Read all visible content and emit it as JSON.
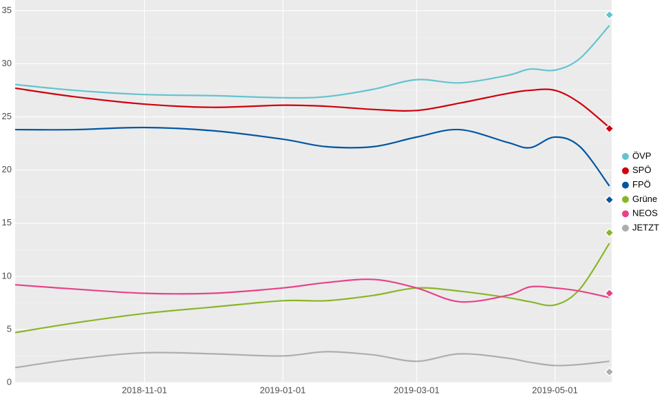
{
  "chart_data": {
    "type": "line",
    "x": [
      "2018-09-05",
      "2018-10-01",
      "2018-11-01",
      "2018-12-01",
      "2019-01-01",
      "2019-01-20",
      "2019-02-10",
      "2019-03-01",
      "2019-03-20",
      "2019-04-10",
      "2019-04-20",
      "2019-05-01",
      "2019-05-12",
      "2019-05-25"
    ],
    "xlim": [
      "2018-09-05",
      "2019-05-26"
    ],
    "xticks": [
      "2018-11-01",
      "2019-01-01",
      "2019-03-01",
      "2019-05-01"
    ],
    "ylim": [
      0,
      36
    ],
    "yticks": [
      0,
      5,
      10,
      15,
      20,
      25,
      30,
      35
    ],
    "grid": true,
    "legend": "right",
    "result_x": "2019-05-25",
    "series": [
      {
        "name": "ÖVP",
        "color": "#63c3d0",
        "values": [
          28.05,
          27.5,
          27.1,
          27.0,
          26.8,
          26.9,
          27.6,
          28.5,
          28.2,
          28.9,
          29.5,
          29.4,
          30.5,
          33.6
        ],
        "result": 34.6
      },
      {
        "name": "SPÖ",
        "color": "#ce000c",
        "values": [
          27.7,
          26.9,
          26.2,
          25.9,
          26.1,
          26.0,
          25.7,
          25.6,
          26.3,
          27.2,
          27.5,
          27.5,
          26.3,
          24.0
        ],
        "result": 23.9
      },
      {
        "name": "FPÖ",
        "color": "#0056a2",
        "values": [
          23.8,
          23.8,
          24.0,
          23.7,
          22.9,
          22.2,
          22.2,
          23.1,
          23.8,
          22.6,
          22.1,
          23.1,
          22.2,
          18.5
        ],
        "result": 17.2
      },
      {
        "name": "Grüne",
        "color": "#88b626",
        "values": [
          4.7,
          5.6,
          6.5,
          7.1,
          7.7,
          7.7,
          8.2,
          8.9,
          8.6,
          8.0,
          7.6,
          7.3,
          8.8,
          13.1
        ],
        "result": 14.1
      },
      {
        "name": "NEOS",
        "color": "#e84188",
        "values": [
          9.2,
          8.8,
          8.4,
          8.4,
          8.9,
          9.4,
          9.7,
          8.9,
          7.6,
          8.2,
          9.0,
          8.9,
          8.6,
          8.0
        ],
        "result": 8.4
      },
      {
        "name": "JETZT",
        "color": "#adadad",
        "values": [
          1.4,
          2.2,
          2.8,
          2.7,
          2.5,
          2.9,
          2.6,
          2.0,
          2.7,
          2.3,
          1.9,
          1.6,
          1.7,
          2.0
        ],
        "result": 1.0
      }
    ]
  }
}
